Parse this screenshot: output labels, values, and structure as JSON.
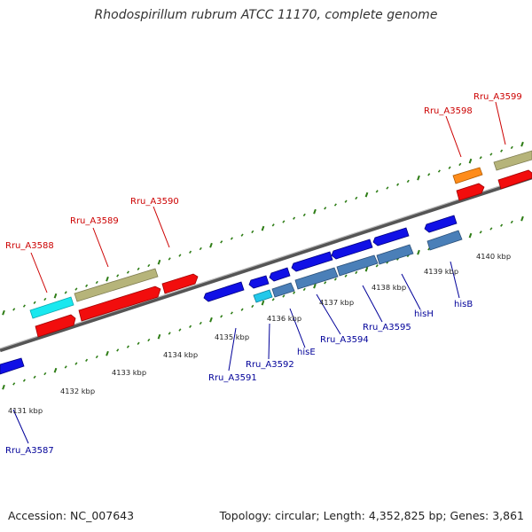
{
  "title": "Rhodospirillum rubrum ATCC 11170, complete genome",
  "footer": {
    "accession": "Accession: NC_007643",
    "stats": "Topology: circular; Length: 4,352,825 bp; Genes: 3,861"
  },
  "colors": {
    "label_red": "#cc0000",
    "label_blue": "#000099",
    "backbone": "#8a8a8a",
    "ticks": "#2e7d16"
  },
  "scale_labels": [
    "4131 kbp",
    "4132 kbp",
    "4133 kbp",
    "4134 kbp",
    "4135 kbp",
    "4136 kbp",
    "4137 kbp",
    "4138 kbp",
    "4139 kbp",
    "4140 kbp"
  ],
  "upper_labels": [
    "Rru_A3588",
    "Rru_A3589",
    "Rru_A3590",
    "Rru_A3598",
    "Rru_A3599"
  ],
  "lower_labels": [
    "Rru_A3587",
    "Rru_A3591",
    "Rru_A3592",
    "hisE",
    "Rru_A3594",
    "Rru_A3595",
    "hisH",
    "hisB"
  ]
}
